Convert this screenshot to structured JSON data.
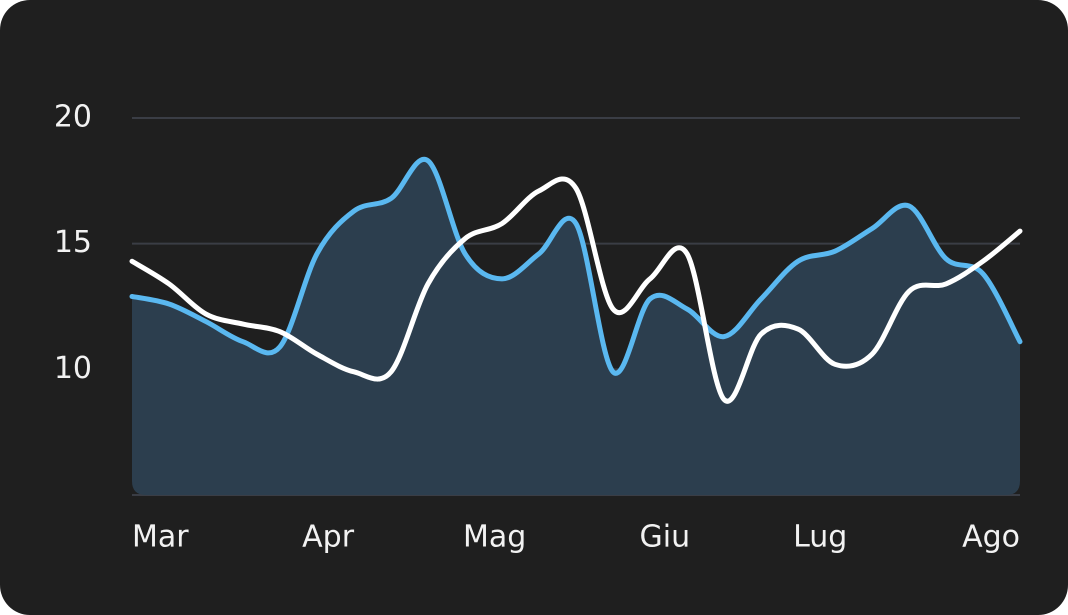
{
  "chart_data": {
    "type": "line",
    "xlim": [
      0,
      24
    ],
    "xticks": [
      {
        "value": 0,
        "label": "Mar"
      },
      {
        "value": 5.3,
        "label": "Apr"
      },
      {
        "value": 9.8,
        "label": "Mag"
      },
      {
        "value": 14.4,
        "label": "Giu"
      },
      {
        "value": 18.6,
        "label": "Lug"
      },
      {
        "value": 24,
        "label": "Ago"
      }
    ],
    "ylim": [
      5,
      20
    ],
    "yticks": [
      10,
      15,
      20
    ],
    "grid": true,
    "x": [
      0,
      1,
      2,
      3,
      4,
      5,
      6,
      7,
      8,
      9,
      10,
      11,
      12,
      13,
      14,
      15,
      16,
      17,
      18,
      19,
      20,
      21,
      22,
      23,
      24
    ],
    "series": [
      {
        "color": "#5ab8f0",
        "fill": "#2c3e4e",
        "values": [
          12.9,
          12.6,
          11.9,
          11.1,
          10.9,
          14.6,
          16.3,
          16.8,
          18.3,
          14.6,
          13.6,
          14.6,
          15.8,
          9.9,
          12.8,
          12.4,
          11.3,
          12.8,
          14.3,
          14.7,
          15.6,
          16.5,
          14.4,
          13.8,
          11.1
        ]
      },
      {
        "color": "#ffffff",
        "values": [
          14.3,
          13.4,
          12.2,
          11.8,
          11.5,
          10.6,
          9.9,
          9.9,
          13.4,
          15.2,
          15.8,
          17.1,
          17.2,
          12.4,
          13.6,
          14.6,
          8.8,
          11.4,
          11.6,
          10.2,
          10.6,
          13.1,
          13.4,
          14.3,
          15.5
        ]
      }
    ]
  }
}
